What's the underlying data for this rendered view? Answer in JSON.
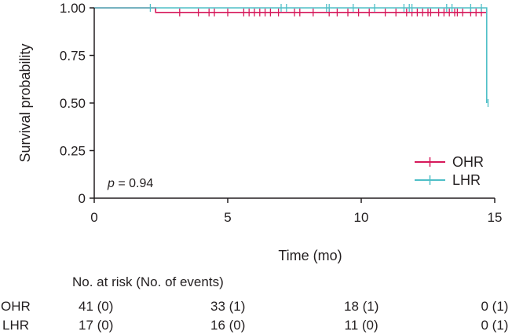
{
  "chart_data": {
    "type": "line",
    "subtype": "kaplan-meier",
    "xlabel": "Time (mo)",
    "ylabel": "Survival probability",
    "xlim": [
      0,
      15
    ],
    "ylim": [
      0,
      1
    ],
    "xticks": [
      "0",
      "5",
      "10",
      "15"
    ],
    "yticks": [
      "0",
      "0.25",
      "0.50",
      "0.75",
      "1.00"
    ],
    "annotation": {
      "p_label": "p",
      "p_value": " = 0.94"
    },
    "legend_position": "bottom-right",
    "series": [
      {
        "name": "OHR",
        "color": "#d6195b",
        "steps": [
          [
            0,
            1.0
          ],
          [
            2.3,
            0.976
          ],
          [
            14.7,
            0.976
          ]
        ],
        "censor_times": [
          3.2,
          3.9,
          4.3,
          4.5,
          5.0,
          5.6,
          5.8,
          6.0,
          6.2,
          6.4,
          6.6,
          6.9,
          7.5,
          7.7,
          8.2,
          8.8,
          9.1,
          9.5,
          9.9,
          10.3,
          10.9,
          11.3,
          11.7,
          11.9,
          12.1,
          12.3,
          12.5,
          12.6,
          12.9,
          13.1,
          13.3,
          13.5,
          13.6,
          13.8,
          14.1,
          14.3,
          14.5,
          14.7
        ]
      },
      {
        "name": "LHR",
        "color": "#4fbfc7",
        "steps": [
          [
            0,
            1.0
          ],
          [
            14.7,
            1.0
          ],
          [
            14.7,
            0.5
          ]
        ],
        "censor_times": [
          2.1,
          7.0,
          7.2,
          8.7,
          8.8,
          9.7,
          10.5,
          11.6,
          11.8,
          11.9,
          13.2,
          13.4,
          14.1,
          14.5,
          14.75
        ]
      }
    ]
  },
  "risk_table": {
    "title": "No. at risk (No. of events)",
    "rows": [
      {
        "label": "OHR",
        "values": [
          "41 (0)",
          "33 (1)",
          "18 (1)",
          "0 (1)"
        ]
      },
      {
        "label": "LHR",
        "values": [
          "17 (0)",
          "16 (0)",
          "11 (0)",
          "0 (1)"
        ]
      }
    ]
  }
}
